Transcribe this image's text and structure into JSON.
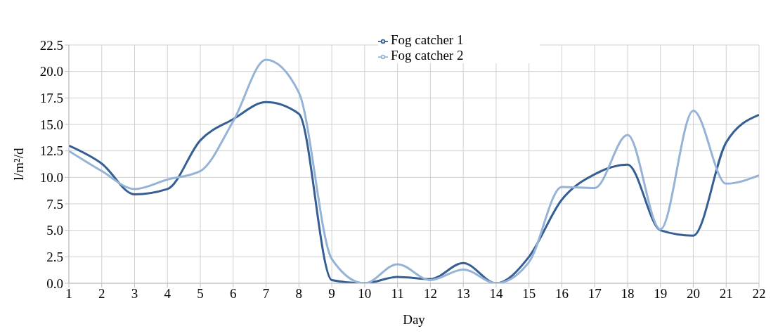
{
  "chart_data": {
    "type": "line",
    "xlabel": "Day",
    "ylabel": "l/m²/d",
    "x": [
      1,
      2,
      3,
      4,
      5,
      6,
      7,
      8,
      9,
      10,
      11,
      12,
      13,
      14,
      15,
      16,
      17,
      18,
      19,
      20,
      21,
      22
    ],
    "series": [
      {
        "name": "Fog catcher 1",
        "color": "#355e93",
        "values": [
          13.0,
          11.3,
          8.4,
          8.9,
          13.5,
          15.5,
          17.1,
          16.0,
          0.3,
          0.0,
          0.6,
          0.4,
          1.9,
          0.0,
          2.5,
          7.9,
          10.3,
          11.2,
          5.0,
          4.5,
          13.3,
          15.9
        ]
      },
      {
        "name": "Fog catcher 2",
        "color": "#95b3d7",
        "values": [
          12.5,
          10.6,
          8.9,
          9.8,
          10.6,
          15.3,
          21.1,
          18.0,
          2.3,
          0.0,
          1.8,
          0.3,
          1.3,
          0.0,
          2.0,
          9.1,
          9.0,
          14.0,
          5.1,
          16.3,
          9.4,
          10.2
        ]
      }
    ],
    "xlim": [
      1,
      22
    ],
    "xticks": [
      1,
      2,
      3,
      4,
      5,
      6,
      7,
      8,
      9,
      10,
      11,
      12,
      13,
      14,
      15,
      16,
      17,
      18,
      19,
      20,
      21,
      22
    ],
    "ylim": [
      0,
      22.5
    ],
    "yticks": [
      {
        "value": 0,
        "label": "0.0"
      },
      2.5,
      {
        "value": 5,
        "label": "5.0"
      },
      7.5,
      {
        "value": 10,
        "label": "10.0"
      },
      12.5,
      {
        "value": 15,
        "label": "15.0"
      },
      17.5,
      {
        "value": 20,
        "label": "20.0"
      },
      22.5
    ],
    "grid": true,
    "legend": "top",
    "marker": "none",
    "line_style": "solid"
  }
}
